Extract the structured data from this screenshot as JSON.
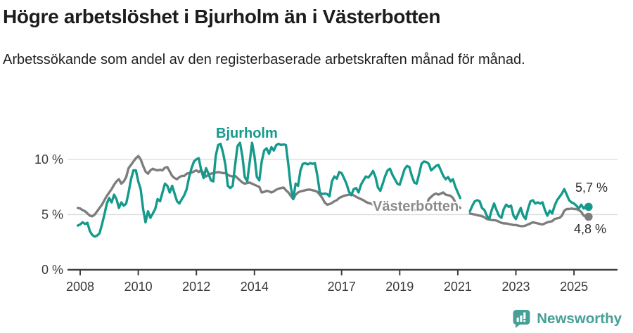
{
  "header": {
    "title": "Högre arbetslöshet i Bjurholm än i Västerbotten",
    "subtitle": "Arbetssökande som andel av den registerbaserade arbetskraften månad för månad."
  },
  "chart_data": {
    "type": "line",
    "unit": "%",
    "grid": "horizontal",
    "legend_position": "inline-labels",
    "x_start": 2007.9167,
    "x_step_years": 0.0833333,
    "xlim": [
      2007.75,
      2026.3
    ],
    "ylim": [
      0,
      12.7
    ],
    "x_ticks": [
      {
        "year": 2008,
        "label": "2008"
      },
      {
        "year": 2010,
        "label": "2010"
      },
      {
        "year": 2012,
        "label": "2012"
      },
      {
        "year": 2014,
        "label": "2014"
      },
      {
        "year": 2017,
        "label": "2017"
      },
      {
        "year": 2019,
        "label": "2019"
      },
      {
        "year": 2021,
        "label": "2021"
      },
      {
        "year": 2023,
        "label": "2023"
      },
      {
        "year": 2025,
        "label": "2025"
      }
    ],
    "y_ticks": [
      {
        "value": 0,
        "label": "0 %"
      },
      {
        "value": 5,
        "label": "5 %"
      },
      {
        "value": 10,
        "label": "10 %"
      }
    ],
    "gap_period": "2021 (three months, no data)",
    "series": [
      {
        "name": "Bjurholm",
        "color": "#149a8b",
        "end_label": "5,7 %",
        "end_value": 5.7,
        "values": [
          4.0,
          4.1,
          4.3,
          4.15,
          4.25,
          3.5,
          3.15,
          3.0,
          3.1,
          3.3,
          4.1,
          5.0,
          6.0,
          6.5,
          6.1,
          6.8,
          6.4,
          5.6,
          6.1,
          5.8,
          6.0,
          7.0,
          8.2,
          9.0,
          9.0,
          8.0,
          7.3,
          5.5,
          4.3,
          5.3,
          4.7,
          5.1,
          5.5,
          6.4,
          6.2,
          7.0,
          7.8,
          7.6,
          7.0,
          7.6,
          6.9,
          6.2,
          6.0,
          6.4,
          6.75,
          7.3,
          8.4,
          9.2,
          9.8,
          10.0,
          10.1,
          9.0,
          8.3,
          9.2,
          8.7,
          8.1,
          8.0,
          10.3,
          11.3,
          11.4,
          10.6,
          9.5,
          7.6,
          7.4,
          7.6,
          9.5,
          11.2,
          11.5,
          10.3,
          8.4,
          8.0,
          9.7,
          11.5,
          10.3,
          8.4,
          8.1,
          9.8,
          10.8,
          11.0,
          10.5,
          11.1,
          10.8,
          11.3,
          11.4,
          11.3,
          11.35,
          11.3,
          9.5,
          7.5,
          6.4,
          7.8,
          7.6,
          9.0,
          9.6,
          9.65,
          9.55,
          9.65,
          9.6,
          9.65,
          8.5,
          7.0,
          6.85,
          6.9,
          6.85,
          6.65,
          8.0,
          8.45,
          8.25,
          8.85,
          8.75,
          8.3,
          7.8,
          7.1,
          6.75,
          7.3,
          7.4,
          7.0,
          7.7,
          8.1,
          8.45,
          8.35,
          8.6,
          8.95,
          8.4,
          7.45,
          7.15,
          7.8,
          8.5,
          9.0,
          9.15,
          8.6,
          8.2,
          7.8,
          7.7,
          8.4,
          9.1,
          9.4,
          9.3,
          8.5,
          7.9,
          7.8,
          8.65,
          9.6,
          9.8,
          9.75,
          9.6,
          9.0,
          9.2,
          9.4,
          9.5,
          9.0,
          8.5,
          8.2,
          8.4,
          8.0,
          8.2,
          7.5,
          7.0,
          6.5,
          null,
          null,
          null,
          5.3,
          5.8,
          6.2,
          6.3,
          6.2,
          5.6,
          5.4,
          4.9,
          4.6,
          5.4,
          6.0,
          5.4,
          4.9,
          4.7,
          5.5,
          5.9,
          5.7,
          5.8,
          4.9,
          4.6,
          5.1,
          5.6,
          4.9,
          4.6,
          5.5,
          6.2,
          6.3,
          6.0,
          6.1,
          6.0,
          6.1,
          5.4,
          4.9,
          5.35,
          5.1,
          5.8,
          6.3,
          6.6,
          6.9,
          7.3,
          6.8,
          6.3,
          6.1,
          6.0,
          5.8,
          5.55,
          5.9,
          5.55,
          5.8,
          5.7
        ]
      },
      {
        "name": "Västerbotten",
        "color": "#7d7d7d",
        "end_label": "4,8 %",
        "end_value": 4.8,
        "values": [
          5.6,
          5.55,
          5.4,
          5.3,
          5.1,
          4.9,
          4.85,
          5.0,
          5.3,
          5.6,
          5.9,
          6.3,
          6.7,
          7.0,
          7.3,
          7.7,
          8.0,
          8.2,
          7.8,
          8.0,
          8.4,
          9.2,
          9.5,
          9.8,
          10.1,
          10.3,
          10.0,
          9.4,
          8.9,
          8.7,
          9.0,
          9.15,
          9.05,
          9.0,
          9.05,
          9.0,
          9.25,
          9.3,
          8.9,
          8.5,
          8.3,
          8.2,
          8.4,
          8.5,
          8.5,
          8.7,
          8.75,
          8.8,
          8.9,
          9.0,
          8.85,
          9.05,
          8.7,
          8.45,
          8.6,
          8.7,
          8.75,
          8.8,
          8.85,
          8.8,
          8.75,
          8.75,
          8.6,
          8.5,
          8.45,
          8.5,
          8.3,
          8.1,
          7.9,
          7.8,
          7.85,
          7.9,
          7.8,
          7.7,
          7.6,
          7.5,
          7.0,
          7.05,
          7.15,
          7.1,
          7.0,
          7.1,
          7.25,
          7.35,
          7.4,
          7.45,
          7.2,
          7.0,
          6.7,
          6.4,
          6.8,
          7.0,
          7.1,
          7.15,
          7.2,
          7.25,
          7.25,
          7.2,
          7.15,
          7.05,
          6.8,
          6.5,
          6.1,
          5.9,
          5.95,
          6.05,
          6.2,
          6.3,
          6.5,
          6.6,
          6.7,
          6.75,
          6.8,
          6.8,
          6.75,
          6.6,
          6.5,
          6.4,
          6.3,
          6.15,
          6.05,
          6.0,
          5.9,
          5.85,
          5.75,
          5.7,
          5.65,
          5.6,
          5.6,
          5.55,
          5.5,
          5.5,
          5.45,
          5.45,
          5.4,
          5.4,
          5.35,
          5.35,
          5.4,
          5.4,
          5.45,
          5.5,
          5.55,
          5.6,
          5.8,
          6.4,
          6.6,
          6.8,
          6.9,
          6.8,
          6.9,
          7.0,
          6.8,
          6.75,
          6.7,
          6.5,
          6.1,
          5.8,
          5.6,
          null,
          null,
          null,
          5.1,
          5.05,
          5.0,
          4.95,
          4.9,
          4.85,
          4.75,
          4.6,
          4.55,
          4.5,
          4.5,
          4.45,
          4.35,
          4.25,
          4.2,
          4.2,
          4.15,
          4.1,
          4.05,
          4.05,
          4.0,
          3.95,
          3.95,
          4.0,
          4.1,
          4.2,
          4.3,
          4.25,
          4.2,
          4.15,
          4.1,
          4.2,
          4.3,
          4.35,
          4.4,
          4.6,
          4.65,
          4.7,
          4.9,
          5.35,
          5.5,
          5.5,
          5.55,
          5.5,
          5.5,
          5.4,
          5.25,
          4.9,
          4.85,
          4.8
        ]
      }
    ]
  },
  "footer": {
    "brand": "Newsworthy"
  },
  "colors": {
    "bjurholm_line": "#149a8b",
    "vasterbotten_line": "#7d7d7d",
    "vasterbotten_label": "#8b8b8b",
    "grid": "#dcdcdc",
    "axis": "#3e3e3e",
    "title_text": "#1c1c1c",
    "brand_teal": "#47a096"
  }
}
